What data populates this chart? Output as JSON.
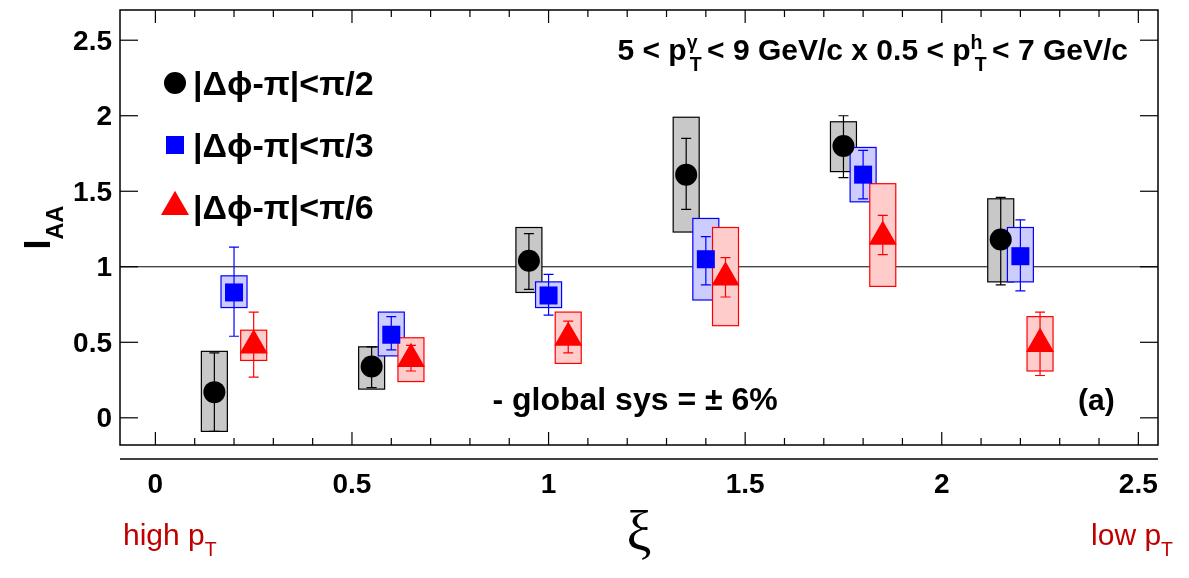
{
  "chart_data": {
    "type": "scatter",
    "title": "5 < p$^{γ}$$_{T}$ < 9 GeV/c x 0.5 < p$^{h}$$_{T}$ < 7 GeV/c",
    "xlabel": "ξ",
    "ylabel": "I$_{AA}$",
    "xlim": [
      -0.09,
      2.55
    ],
    "ylim": [
      -0.18,
      2.7
    ],
    "xticks": [
      0,
      0.5,
      1,
      1.5,
      2,
      2.5
    ],
    "yticks": [
      0,
      0.5,
      1,
      1.5,
      2,
      2.5
    ],
    "grid": false,
    "legend": "top left",
    "ref_lines": [
      {
        "axis": "y",
        "value": 1,
        "color": "#000000"
      }
    ],
    "annotations": [
      "- global sys = ± 6%",
      "(a)",
      "high p$_{T}$",
      "low p$_{T}$"
    ],
    "series": [
      {
        "type": "bar",
        "color": "#c8c8c8",
        "x": [
          0.15,
          0.55,
          0.95,
          1.35,
          1.75,
          2.15
        ],
        "base": [
          -0.09,
          0.19,
          0.83,
          1.23,
          1.63,
          0.9
        ],
        "values": [
          0.53,
          0.28,
          0.43,
          0.76,
          0.33,
          0.55
        ]
      },
      {
        "type": "bar",
        "color": "#ccccff",
        "x": [
          0.2,
          0.6,
          1.0,
          1.4,
          1.8,
          2.2
        ],
        "base": [
          0.73,
          0.41,
          0.73,
          0.78,
          1.43,
          0.9
        ],
        "values": [
          0.21,
          0.29,
          0.17,
          0.54,
          0.36,
          0.36
        ]
      },
      {
        "type": "bar",
        "color": "#ffcccc",
        "x": [
          0.25,
          0.65,
          1.05,
          1.45,
          1.85,
          2.25
        ],
        "base": [
          0.38,
          0.24,
          0.36,
          0.61,
          0.87,
          0.31
        ],
        "values": [
          0.2,
          0.29,
          0.34,
          0.65,
          0.68,
          0.36
        ]
      },
      {
        "name": "|Δϕ-π|<π/2",
        "color": "#000000",
        "marker": "circle",
        "x": [
          0.15,
          0.55,
          0.95,
          1.35,
          1.75,
          2.15
        ],
        "values": [
          0.17,
          0.34,
          1.04,
          1.61,
          1.8,
          1.18
        ],
        "errors": [
          [
            -0.09,
            0.43
          ],
          [
            0.2,
            0.47
          ],
          [
            0.85,
            1.22
          ],
          [
            1.38,
            1.85
          ],
          [
            1.59,
            2.0
          ],
          [
            0.88,
            1.46
          ]
        ]
      },
      {
        "name": "|Δϕ-π|<π/3",
        "color": "#0000ff",
        "marker": "square",
        "x": [
          0.2,
          0.6,
          1.0,
          1.4,
          1.8,
          2.2
        ],
        "values": [
          0.83,
          0.55,
          0.81,
          1.05,
          1.61,
          1.07
        ],
        "errors": [
          [
            0.54,
            1.13
          ],
          [
            0.45,
            0.67
          ],
          [
            0.68,
            0.95
          ],
          [
            0.88,
            1.2
          ],
          [
            1.45,
            1.77
          ],
          [
            0.84,
            1.31
          ]
        ]
      },
      {
        "name": "|Δϕ-π|<π/6",
        "color": "#ff0000",
        "marker": "triangle",
        "x": [
          0.25,
          0.65,
          1.05,
          1.45,
          1.85,
          2.25
        ],
        "values": [
          0.48,
          0.39,
          0.53,
          0.93,
          1.2,
          0.49
        ],
        "errors": [
          [
            0.27,
            0.7
          ],
          [
            0.31,
            0.48
          ],
          [
            0.43,
            0.64
          ],
          [
            0.8,
            1.06
          ],
          [
            1.08,
            1.34
          ],
          [
            0.28,
            0.7
          ]
        ]
      }
    ]
  }
}
